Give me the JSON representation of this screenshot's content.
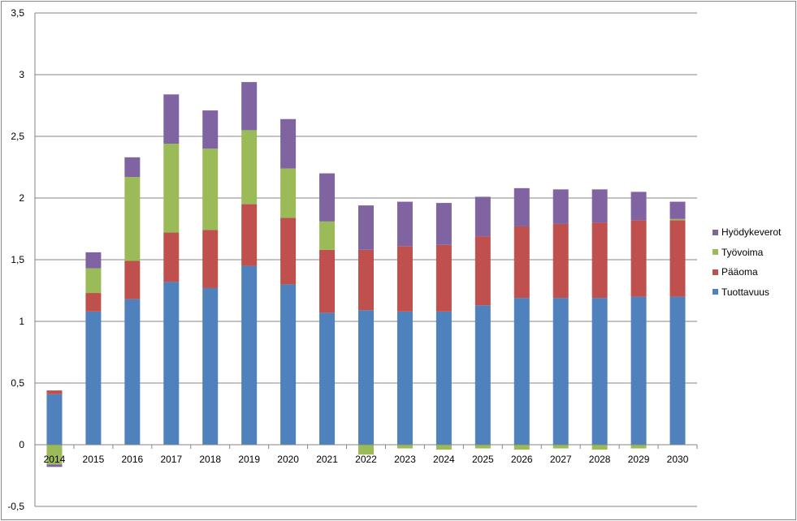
{
  "chart_data": {
    "type": "bar",
    "stacked": true,
    "categories": [
      "2014",
      "2015",
      "2016",
      "2017",
      "2018",
      "2019",
      "2020",
      "2021",
      "2022",
      "2023",
      "2024",
      "2025",
      "2026",
      "2027",
      "2028",
      "2029",
      "2030"
    ],
    "series": [
      {
        "name": "Tuottavuus",
        "color": "#4f81bd",
        "values": [
          0.41,
          1.08,
          1.18,
          1.32,
          1.27,
          1.45,
          1.3,
          1.07,
          1.09,
          1.08,
          1.08,
          1.13,
          1.19,
          1.19,
          1.19,
          1.2,
          1.2
        ]
      },
      {
        "name": "Pääoma",
        "color": "#c0504d",
        "values": [
          0.03,
          0.15,
          0.31,
          0.4,
          0.47,
          0.5,
          0.54,
          0.51,
          0.49,
          0.53,
          0.54,
          0.56,
          0.58,
          0.6,
          0.61,
          0.62,
          0.62
        ]
      },
      {
        "name": "Työvoima",
        "color": "#9bbb59",
        "values": [
          -0.16,
          0.2,
          0.68,
          0.72,
          0.66,
          0.6,
          0.4,
          0.23,
          -0.08,
          -0.03,
          -0.04,
          -0.03,
          -0.04,
          -0.03,
          -0.04,
          -0.03,
          0.01
        ]
      },
      {
        "name": "Hyödykeverot",
        "color": "#8064a2",
        "values": [
          -0.02,
          0.13,
          0.16,
          0.4,
          0.31,
          0.39,
          0.4,
          0.39,
          0.36,
          0.36,
          0.34,
          0.32,
          0.31,
          0.28,
          0.27,
          0.23,
          0.14
        ]
      }
    ],
    "yticks": [
      "-0,5",
      "0",
      "0,5",
      "1",
      "1,5",
      "2",
      "2,5",
      "3",
      "3,5"
    ],
    "ylim": [
      -0.5,
      3.5
    ],
    "grid": true,
    "legend_position": "right",
    "legend_order": [
      "Hyödykeverot",
      "Työvoima",
      "Pääoma",
      "Tuottavuus"
    ]
  }
}
